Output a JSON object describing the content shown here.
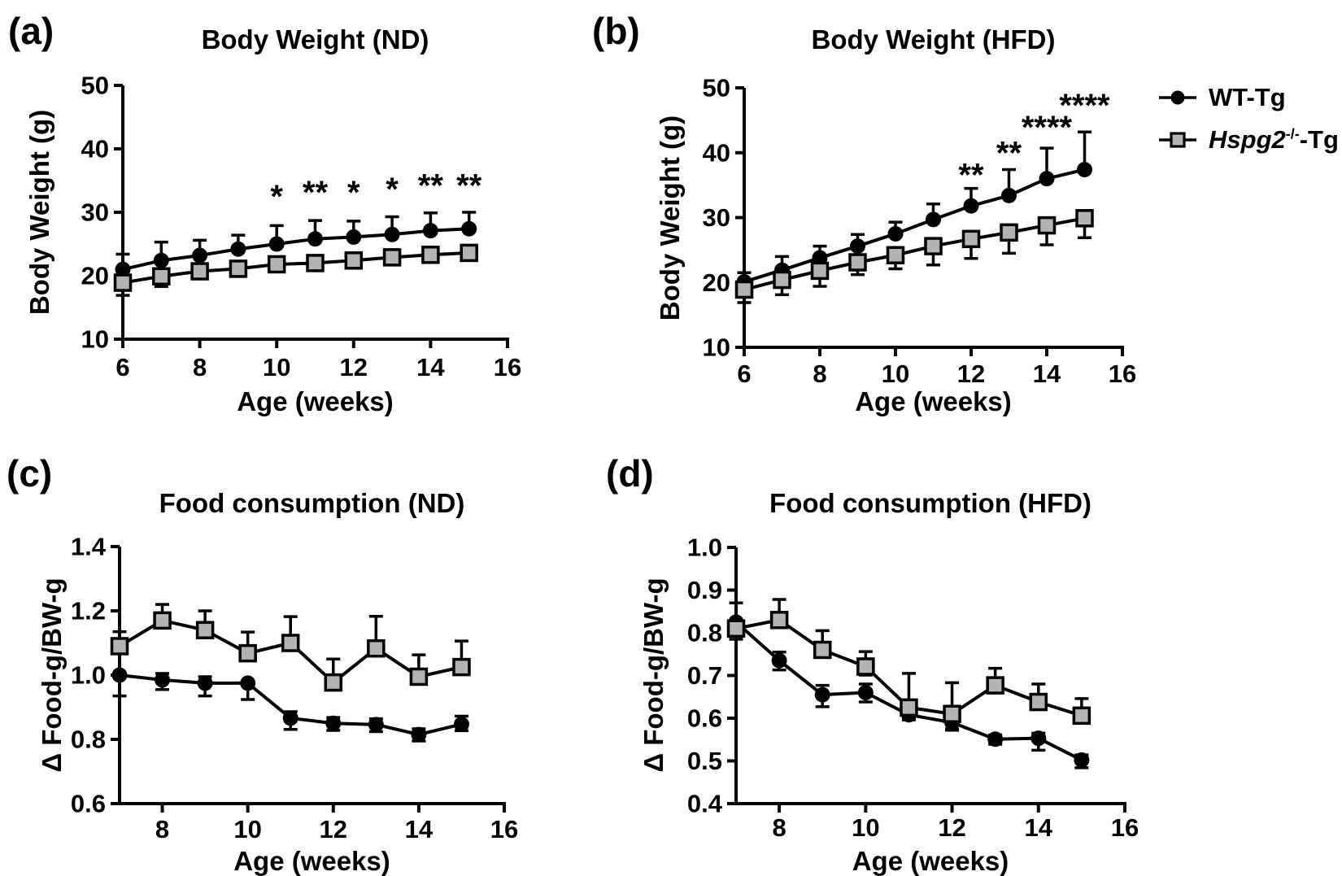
{
  "figure": {
    "background": "#ffffff",
    "colors": {
      "black": "#000000",
      "gray_fill": "#b3b3b3"
    }
  },
  "legend": {
    "items": [
      {
        "id": "wt",
        "marker": "circle",
        "label": "WT-Tg"
      },
      {
        "id": "hspg2",
        "marker": "square",
        "label_italic": "Hspg2",
        "label_sup": "-/-",
        "label_tail": "-Tg"
      }
    ]
  },
  "chart_data": [
    {
      "id": "a",
      "type": "line",
      "panel_label": "(a)",
      "title": "Body Weight (ND)",
      "xlabel": "Age (weeks)",
      "ylabel": "Body Weight (g)",
      "xlim": [
        6,
        16
      ],
      "xticks": [
        6,
        8,
        10,
        12,
        14,
        16
      ],
      "ylim": [
        10,
        50
      ],
      "yticks": [
        10,
        20,
        30,
        40,
        50
      ],
      "grid": false,
      "legend_position": "right-of-panel-b",
      "x": [
        6,
        7,
        8,
        9,
        10,
        11,
        12,
        13,
        14,
        15
      ],
      "series": [
        {
          "name": "WT-Tg",
          "marker": "circle",
          "values": [
            21.0,
            22.4,
            23.2,
            24.2,
            25.0,
            25.8,
            26.1,
            26.5,
            27.1,
            27.4
          ],
          "err_up": [
            2.4,
            2.9,
            2.4,
            2.2,
            2.9,
            2.9,
            2.5,
            2.8,
            2.8,
            2.6
          ],
          "err_dn": [
            0,
            0,
            0,
            0,
            0,
            0,
            0,
            0,
            0,
            0
          ]
        },
        {
          "name": "Hspg2-/--Tg",
          "marker": "square",
          "values": [
            18.9,
            19.9,
            20.7,
            21.1,
            21.8,
            22.0,
            22.4,
            22.9,
            23.3,
            23.6
          ],
          "err_up": [
            0,
            0,
            0,
            0,
            0,
            0,
            0,
            0,
            0,
            0
          ],
          "err_dn": [
            2.0,
            1.6,
            0.5,
            0.5,
            0.9,
            1.0,
            0.5,
            0.5,
            0.7,
            0.5
          ]
        }
      ],
      "annotations": [
        {
          "x": 10,
          "y": 30.8,
          "text": "*"
        },
        {
          "x": 11,
          "y": 31.4,
          "text": "**"
        },
        {
          "x": 12,
          "y": 31.4,
          "text": "*"
        },
        {
          "x": 13,
          "y": 31.9,
          "text": "*"
        },
        {
          "x": 14,
          "y": 32.5,
          "text": "**"
        },
        {
          "x": 15,
          "y": 32.5,
          "text": "**"
        }
      ]
    },
    {
      "id": "b",
      "type": "line",
      "panel_label": "(b)",
      "title": "Body Weight (HFD)",
      "xlabel": "Age (weeks)",
      "ylabel": "Body Weight (g)",
      "xlim": [
        6,
        16
      ],
      "xticks": [
        6,
        8,
        10,
        12,
        14,
        16
      ],
      "ylim": [
        10,
        50
      ],
      "yticks": [
        10,
        20,
        30,
        40,
        50
      ],
      "grid": false,
      "x": [
        6,
        7,
        8,
        9,
        10,
        11,
        12,
        13,
        14,
        15
      ],
      "series": [
        {
          "name": "WT-Tg",
          "marker": "circle",
          "values": [
            20.1,
            21.9,
            23.8,
            25.6,
            27.5,
            29.7,
            31.8,
            33.4,
            36.0,
            37.4
          ],
          "err_up": [
            1.4,
            2.1,
            1.8,
            1.8,
            1.8,
            2.4,
            2.7,
            4.0,
            4.7,
            5.8
          ],
          "err_dn": [
            1.5,
            1.2,
            0.9,
            0,
            0,
            0,
            0,
            0,
            0,
            0
          ]
        },
        {
          "name": "Hspg2-/--Tg",
          "marker": "square",
          "values": [
            18.9,
            20.4,
            21.8,
            23.1,
            24.2,
            25.6,
            26.7,
            27.7,
            28.8,
            29.9
          ],
          "err_up": [
            1.4,
            1.2,
            1.0,
            0,
            0,
            0,
            0,
            0,
            0,
            0
          ],
          "err_dn": [
            2.0,
            2.3,
            2.4,
            1.9,
            2.1,
            2.9,
            3.0,
            3.2,
            3.0,
            3.0
          ]
        }
      ],
      "annotations": [
        {
          "x": 12,
          "y": 34.9,
          "text": "**"
        },
        {
          "x": 13,
          "y": 38.3,
          "text": "**"
        },
        {
          "x": 14,
          "y": 42.2,
          "text": "****"
        },
        {
          "x": 15,
          "y": 45.6,
          "text": "****"
        }
      ]
    },
    {
      "id": "c",
      "type": "line",
      "panel_label": "(c)",
      "title": "Food consumption (ND)",
      "xlabel": "Age (weeks)",
      "ylabel": "Δ Food-g/BW-g",
      "xlim": [
        7,
        16
      ],
      "xticks": [
        8,
        10,
        12,
        14,
        16
      ],
      "ylim": [
        0.6,
        1.4
      ],
      "yticks": [
        0.6,
        0.8,
        1.0,
        1.2,
        1.4
      ],
      "grid": false,
      "x": [
        7,
        8,
        9,
        10,
        11,
        12,
        13,
        14,
        15
      ],
      "series": [
        {
          "name": "WT-Tg",
          "marker": "circle",
          "values": [
            1.0,
            0.985,
            0.975,
            0.975,
            0.866,
            0.85,
            0.846,
            0.815,
            0.847
          ],
          "err_up": [
            0,
            0.02,
            0.02,
            0,
            0.02,
            0.018,
            0.018,
            0.018,
            0.025
          ],
          "err_dn": [
            0.065,
            0.03,
            0.04,
            0.051,
            0.035,
            0.022,
            0.022,
            0.02,
            0.02
          ]
        },
        {
          "name": "Hspg2-/--Tg",
          "marker": "square",
          "values": [
            1.09,
            1.17,
            1.14,
            1.068,
            1.1,
            0.977,
            1.083,
            0.995,
            1.025
          ],
          "err_up": [
            0.045,
            0.05,
            0.06,
            0.066,
            0.082,
            0.073,
            0.1,
            0.068,
            0.081
          ],
          "err_dn": [
            0,
            0,
            0,
            0,
            0,
            0.02,
            0,
            0.02,
            0
          ]
        }
      ],
      "annotations": []
    },
    {
      "id": "d",
      "type": "line",
      "panel_label": "(d)",
      "title": "Food consumption (HFD)",
      "xlabel": "Age (weeks)",
      "ylabel": "Δ Food-g/BW-g",
      "xlim": [
        7,
        16
      ],
      "xticks": [
        8,
        10,
        12,
        14,
        16
      ],
      "ylim": [
        0.4,
        1.0
      ],
      "yticks": [
        0.4,
        0.5,
        0.6,
        0.7,
        0.8,
        0.9,
        1.0
      ],
      "grid": false,
      "x": [
        7,
        8,
        9,
        10,
        11,
        12,
        13,
        14,
        15
      ],
      "series": [
        {
          "name": "WT-Tg",
          "marker": "circle",
          "values": [
            0.825,
            0.735,
            0.655,
            0.66,
            0.608,
            0.59,
            0.551,
            0.553,
            0.502
          ],
          "err_up": [
            0.045,
            0.02,
            0.022,
            0.02,
            0.015,
            0.018,
            0.01,
            0.012,
            0.012
          ],
          "err_dn": [
            0.02,
            0.022,
            0.028,
            0.022,
            0.012,
            0.018,
            0.012,
            0.028,
            0.018
          ]
        },
        {
          "name": "Hspg2-/--Tg",
          "marker": "square",
          "values": [
            0.81,
            0.83,
            0.76,
            0.721,
            0.625,
            0.61,
            0.677,
            0.638,
            0.606
          ],
          "err_up": [
            0.06,
            0.048,
            0.045,
            0.035,
            0.08,
            0.073,
            0.04,
            0.042,
            0.04
          ],
          "err_dn": [
            0.025,
            0,
            0,
            0.02,
            0,
            0.035,
            0,
            0,
            0
          ]
        }
      ],
      "annotations": []
    }
  ]
}
